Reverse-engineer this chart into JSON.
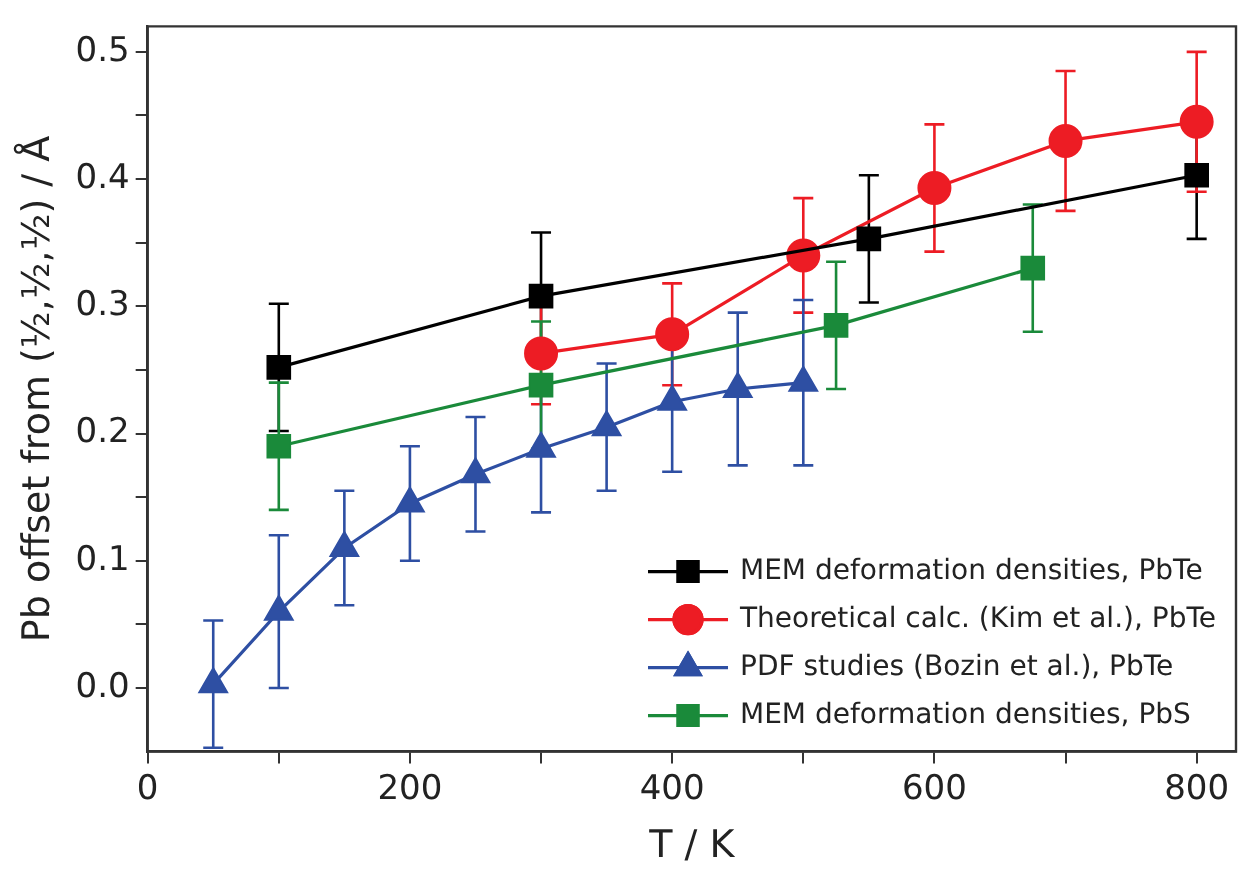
{
  "chart_data": {
    "type": "line",
    "xlabel": "T / K",
    "ylabel": "Pb offset from (½,½,½) / Å",
    "xlim": [
      0,
      830
    ],
    "xticks": [
      0,
      {
        "value": 100,
        "label": null
      },
      200,
      {
        "value": 300,
        "label": null
      },
      400,
      {
        "value": 500,
        "label": null
      },
      600,
      {
        "value": 700,
        "label": null
      },
      800
    ],
    "ylim": [
      -0.05,
      0.52
    ],
    "yticks": [
      {
        "value": 0,
        "label": "0.0"
      },
      {
        "value": 0.05,
        "label": null
      },
      0.1,
      {
        "value": 0.15,
        "label": null
      },
      0.2,
      {
        "value": 0.25,
        "label": null
      },
      0.3,
      {
        "value": 0.35,
        "label": null
      },
      0.4,
      {
        "value": 0.45,
        "label": null
      },
      0.5
    ],
    "grid": false,
    "legend": "bottom right",
    "line_style": "solid",
    "series": [
      {
        "name": "MEM deformation densities, PbTe",
        "color": "#000000",
        "marker": "square",
        "x": [
          100,
          300,
          550,
          800
        ],
        "values": [
          0.252,
          0.308,
          0.353,
          0.403
        ],
        "errors": [
          0.05,
          0.05,
          0.05,
          0.05
        ]
      },
      {
        "name": "Theoretical calc. (Kim et al.), PbTe",
        "color": "#ed1c24",
        "marker": "circle",
        "x": [
          300,
          400,
          500,
          600,
          700,
          800
        ],
        "values": [
          0.263,
          0.278,
          0.34,
          0.393,
          0.43,
          0.445
        ],
        "errors": [
          0.04,
          0.04,
          0.045,
          0.05,
          0.055,
          0.055
        ]
      },
      {
        "name": "PDF studies (Bozin et al.), PbTe",
        "color": "#2e4fa3",
        "marker": "triangle",
        "x": [
          50,
          100,
          150,
          200,
          250,
          300,
          350,
          400,
          450,
          500
        ],
        "values": [
          0.003,
          0.06,
          0.11,
          0.145,
          0.168,
          0.188,
          0.205,
          0.225,
          0.235,
          0.24
        ],
        "errors": [
          0.05,
          0.06,
          0.045,
          0.045,
          0.045,
          0.05,
          0.05,
          0.055,
          0.06,
          0.065
        ]
      },
      {
        "name": "MEM deformation densities, PbS",
        "color": "#1a8a3a",
        "marker": "square",
        "x": [
          100,
          300,
          525,
          675
        ],
        "values": [
          0.19,
          0.238,
          0.285,
          0.33
        ],
        "errors": [
          0.05,
          0.05,
          0.05,
          0.05
        ]
      }
    ]
  }
}
